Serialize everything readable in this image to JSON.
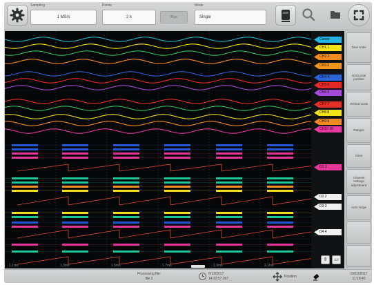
{
  "toolbar": {
    "settings_icon": "gear-icon",
    "sampling_label": "Sampling",
    "sampling_value": "1 MS/s",
    "points_label": "Points",
    "points_value": "2 k",
    "points_button_label": "Run",
    "mode_label": "Mode",
    "mode_value": "Single",
    "record_icon": "record-icon",
    "search_icon": "search-icon",
    "folder_icon": "folder-icon",
    "fullscreen_icon": "expand-icon"
  },
  "channels": {
    "cursor_label": "Cursor",
    "analog": [
      {
        "label": "CH1 1",
        "color": "#f4e318"
      },
      {
        "label": "CH2 2",
        "color": "#f28c1e"
      },
      {
        "label": "CH3 3",
        "color": "#f3941c"
      },
      {
        "label": "CH4 4",
        "color": "#2c63d8"
      },
      {
        "label": "CH5 5",
        "color": "#e32a2a"
      },
      {
        "label": "CH6 6",
        "color": "#a64ad9"
      },
      {
        "label": "CH7 7",
        "color": "#e53127"
      },
      {
        "label": "CH8 8",
        "color": "#f2e21a"
      },
      {
        "label": "CH9 9",
        "color": "#f08a22"
      },
      {
        "label": "CH10 10",
        "color": "#e83aa0"
      }
    ],
    "digital_group_1": "D1 1",
    "digital_group_2": "D2 2",
    "digital_group_3": "D3 3",
    "digital_group_4": "D4 4"
  },
  "sidebar": {
    "buttons": [
      "Time scale",
      "Horizontal position",
      "Vertical scale",
      "Ranges",
      "Clear",
      "Channel settings adjustment",
      "Auto range"
    ]
  },
  "statusbar": {
    "processing_label": "Processing file:",
    "processing_value": "file 3",
    "date": "6/13/2017",
    "time": "14:23:57.267",
    "position_label": "Position",
    "right_line1": "10/10/2017",
    "right_line2": "11:18:40"
  },
  "time_axis_labels": [
    "1.1ms",
    "1.3ms",
    "1.5ms",
    "1.7ms",
    "1.9ms",
    "2.1ms"
  ],
  "colors": {
    "cursor": "#23b5e6",
    "digital_blue": "#2458d6",
    "digital_pink": "#e6369a",
    "digital_teal": "#19c79a",
    "digital_yellow": "#f2e01c",
    "digital_orange": "#f39324",
    "ramp": "#e04a3c"
  }
}
